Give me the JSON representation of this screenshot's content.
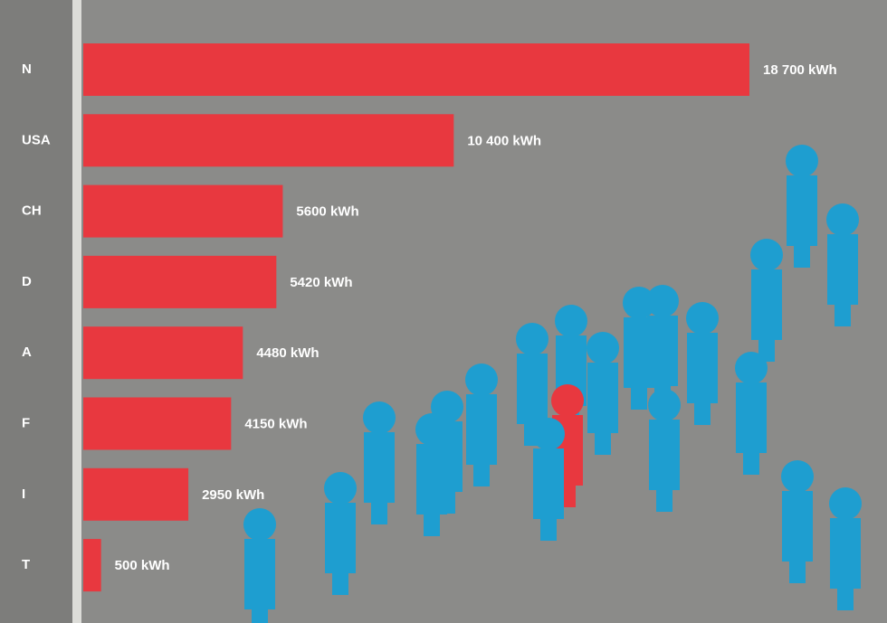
{
  "chart_data": {
    "type": "bar",
    "orientation": "horizontal",
    "categories": [
      "N",
      "USA",
      "CH",
      "D",
      "A",
      "F",
      "I",
      "T"
    ],
    "values": [
      18700,
      10400,
      5600,
      5420,
      4480,
      4150,
      2950,
      500
    ],
    "value_labels": [
      "18 700 kWh",
      "10 400 kWh",
      "5600 kWh",
      "5420 kWh",
      "4480 kWh",
      "4150 kWh",
      "2950 kWh",
      "500 kWh"
    ],
    "color": "#e8383f"
  }
}
